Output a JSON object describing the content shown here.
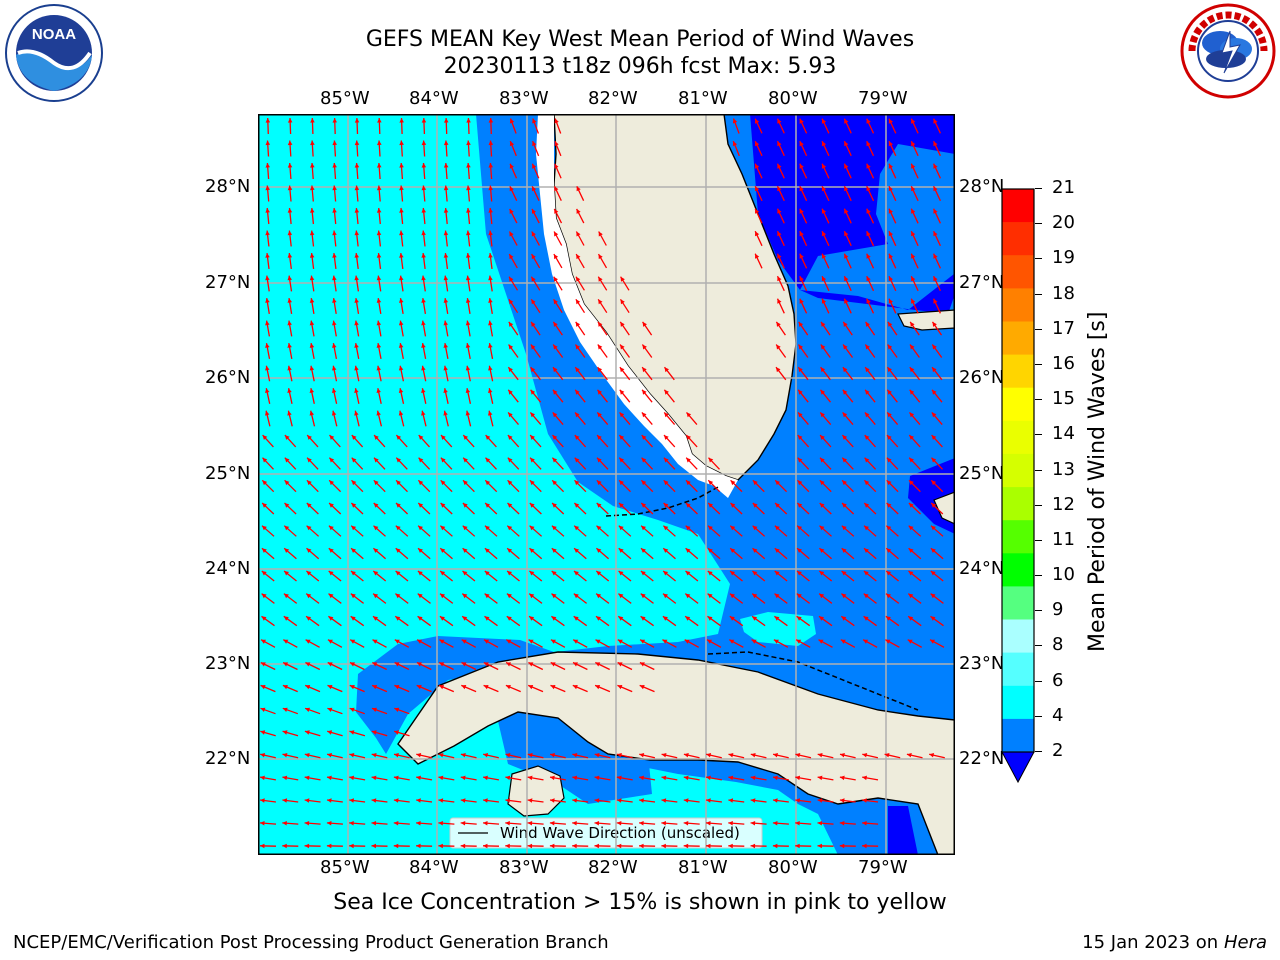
{
  "header": {
    "title_line1": "GEFS MEAN Key West Mean Period of Wind Waves",
    "title_line2": "20230113 t18z 096h fcst   Max: 5.93"
  },
  "logos": {
    "left_icon": "noaa-logo",
    "left_text": "NOAA",
    "left_ring_text": "NATIONAL OCEANIC AND ATMOSPHERIC ADMINISTRATION · U.S. DEPARTMENT OF COMMERCE",
    "right_icon": "nws-logo",
    "right_ring_text": "NATIONAL WEATHER SERVICE"
  },
  "map": {
    "lon_labels": [
      "85°W",
      "84°W",
      "83°W",
      "82°W",
      "81°W",
      "80°W",
      "79°W"
    ],
    "lat_labels": [
      "28°N",
      "27°N",
      "26°N",
      "25°N",
      "24°N",
      "23°N",
      "22°N"
    ],
    "legend_label": "Wind Wave Direction (unscaled)",
    "arrow_color": "#ff0000",
    "land_color": "#eeecdc",
    "ocean_colors": {
      "period_2_4": "#0080ff",
      "period_4_6": "#00ffff",
      "below_2": "#0000ff"
    }
  },
  "colorbar": {
    "title": "Mean Period of Wind Waves [s]",
    "tick_labels": [
      "21",
      "20",
      "19",
      "18",
      "17",
      "16",
      "15",
      "14",
      "13",
      "12",
      "11",
      "10",
      "9",
      "8",
      "6",
      "4",
      "2"
    ],
    "colors": [
      "#ff0000",
      "#ff2e00",
      "#ff5500",
      "#ff8000",
      "#ffaa00",
      "#ffd500",
      "#ffff00",
      "#eaff00",
      "#d5ff00",
      "#aaff00",
      "#55ff00",
      "#00ff00",
      "#55ff80",
      "#aaffff",
      "#55ffff",
      "#00ffff",
      "#0080ff"
    ],
    "under_color": "#0000ff"
  },
  "caption": "Sea Ice Concentration > 15% is shown in pink to yellow",
  "footer": {
    "left": "NCEP/EMC/Verification Post Processing Product Generation Branch",
    "right_prefix": "15 Jan 2023 on ",
    "right_host": "Hera"
  }
}
